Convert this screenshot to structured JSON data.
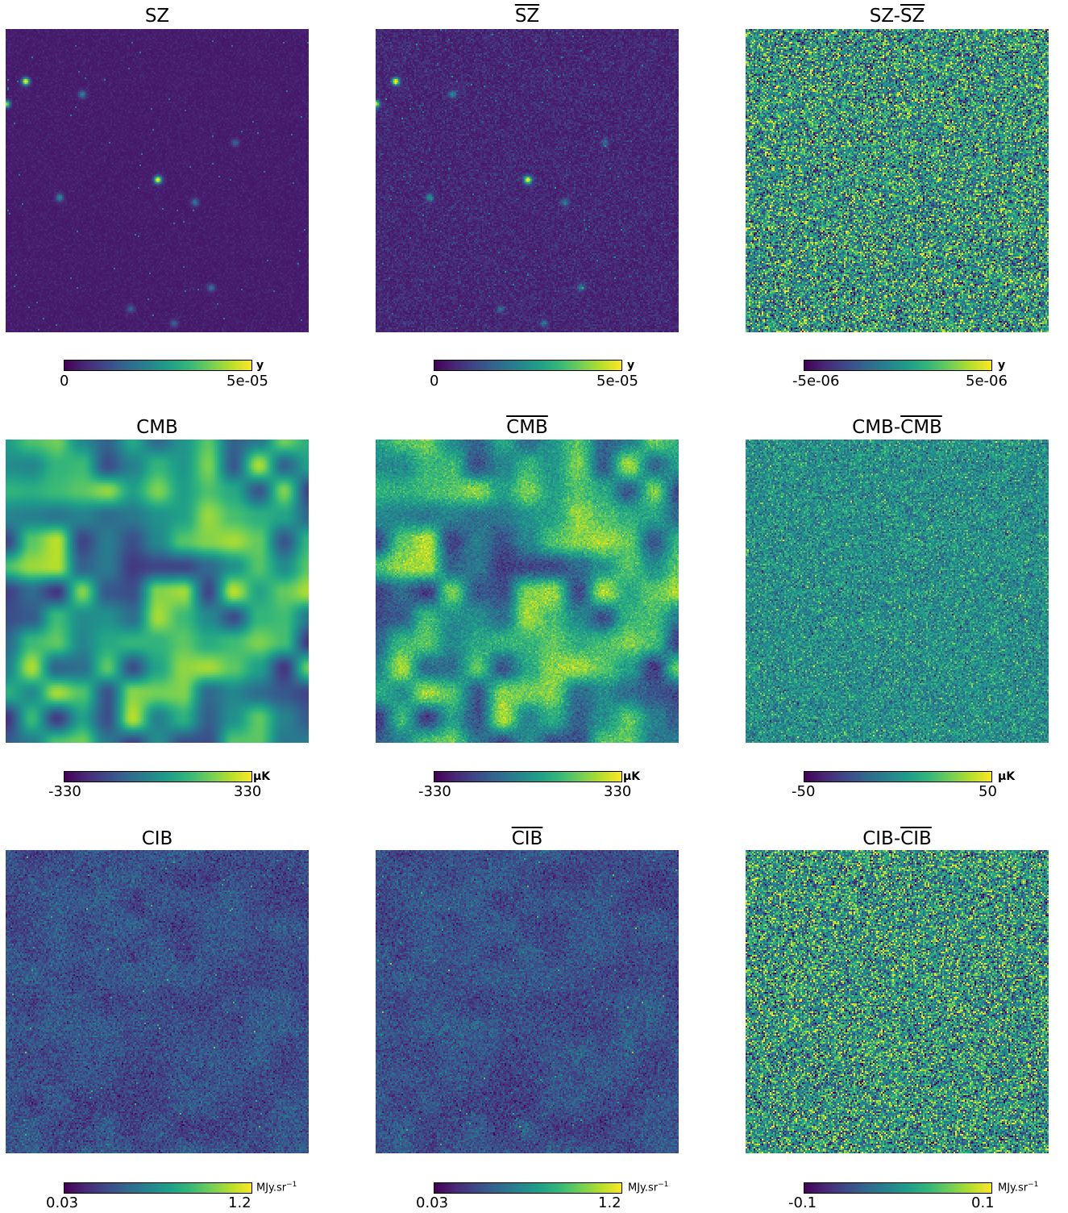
{
  "colors": {
    "viridis": [
      "#440154",
      "#482878",
      "#3e4989",
      "#31688e",
      "#26828e",
      "#1f9e89",
      "#35b779",
      "#6ece58",
      "#b5de2b",
      "#fde725"
    ]
  },
  "panels": [
    {
      "name": "sz",
      "title_pre": "SZ",
      "title_bar": "",
      "cmin": "0",
      "cmax": "5e-05",
      "unit": "y",
      "map_style": "sparse_sources"
    },
    {
      "name": "sz-bar",
      "title_pre": "",
      "title_bar": "SZ",
      "cmin": "0",
      "cmax": "5e-05",
      "unit": "y",
      "map_style": "sparse_sources_noisy"
    },
    {
      "name": "sz-diff",
      "title_pre": "SZ-",
      "title_bar": "SZ",
      "cmin": "-5e-06",
      "cmax": "5e-06",
      "unit": "y",
      "map_style": "white_noise"
    },
    {
      "name": "cmb",
      "title_pre": "CMB",
      "title_bar": "",
      "cmin": "-330",
      "cmax": "330",
      "unit": "μK",
      "map_style": "smooth_field"
    },
    {
      "name": "cmb-bar",
      "title_pre": "",
      "title_bar": "CMB",
      "cmin": "-330",
      "cmax": "330",
      "unit": "μK",
      "map_style": "smooth_field_noisy"
    },
    {
      "name": "cmb-diff",
      "title_pre": "CMB-",
      "title_bar": "CMB",
      "cmin": "-50",
      "cmax": "50",
      "unit": "μK",
      "map_style": "white_noise_mid"
    },
    {
      "name": "cib",
      "title_pre": "CIB",
      "title_bar": "",
      "cmin": "0.03",
      "cmax": "1.2",
      "unit": "MJy.sr",
      "unit_exp": "−1",
      "map_style": "faint_noise"
    },
    {
      "name": "cib-bar",
      "title_pre": "",
      "title_bar": "CIB",
      "cmin": "0.03",
      "cmax": "1.2",
      "unit": "MJy.sr",
      "unit_exp": "−1",
      "map_style": "faint_noise"
    },
    {
      "name": "cib-diff",
      "title_pre": "CIB-",
      "title_bar": "CIB",
      "cmin": "-0.1",
      "cmax": "0.1",
      "unit": "MJy.sr",
      "unit_exp": "−1",
      "map_style": "white_noise"
    }
  ]
}
